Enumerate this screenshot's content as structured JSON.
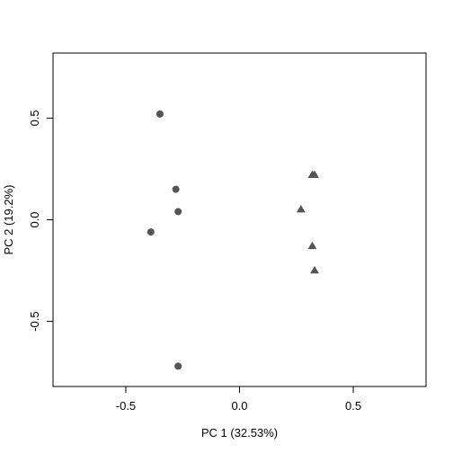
{
  "chart_data": {
    "type": "scatter",
    "title": "",
    "xlabel": "PC 1 (32.53%)",
    "ylabel": "PC 2 (19.2%)",
    "xlim": [
      -0.82,
      0.82
    ],
    "ylim": [
      -0.82,
      0.82
    ],
    "xticks": [
      -0.5,
      0.0,
      0.5
    ],
    "xtick_labels": [
      "-0.5",
      "0.0",
      "0.5"
    ],
    "yticks": [
      -0.5,
      0.0,
      0.5
    ],
    "ytick_labels": [
      "-0.5",
      "0.0",
      "0.5"
    ],
    "grid": false,
    "legend": "none",
    "point_color": "#555555",
    "series": [
      {
        "marker": "circle",
        "points": [
          {
            "x": -0.35,
            "y": 0.52
          },
          {
            "x": -0.28,
            "y": 0.15
          },
          {
            "x": -0.27,
            "y": 0.04
          },
          {
            "x": -0.39,
            "y": -0.06
          },
          {
            "x": -0.27,
            "y": -0.72
          }
        ]
      },
      {
        "marker": "triangle",
        "points": [
          {
            "x": 0.32,
            "y": 0.22
          },
          {
            "x": 0.33,
            "y": 0.22
          },
          {
            "x": 0.27,
            "y": 0.05
          },
          {
            "x": 0.32,
            "y": -0.13
          },
          {
            "x": 0.33,
            "y": -0.25
          }
        ]
      }
    ]
  }
}
